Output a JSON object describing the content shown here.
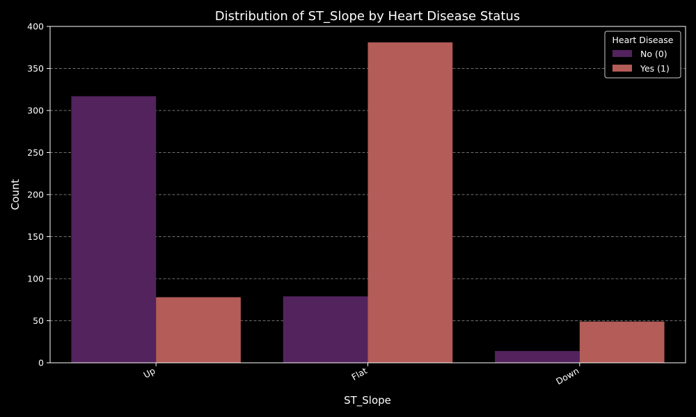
{
  "chart_data": {
    "type": "bar",
    "title": "Distribution of ST_Slope by Heart Disease Status",
    "xlabel": "ST_Slope",
    "ylabel": "Count",
    "categories": [
      "Up",
      "Flat",
      "Down"
    ],
    "series": [
      {
        "name": "No (0)",
        "values": [
          317,
          79,
          14
        ],
        "color": "#53235e"
      },
      {
        "name": "Yes (1)",
        "values": [
          78,
          381,
          49
        ],
        "color": "#b35c58"
      }
    ],
    "ylim": [
      0,
      400
    ],
    "yticks": [
      "0",
      "50",
      "100",
      "150",
      "200",
      "250",
      "300",
      "350",
      "400"
    ],
    "grid": "y-dashed",
    "legend": {
      "title": "Heart Disease",
      "placement": "top-right"
    },
    "background": "#000000",
    "foreground": "#ffffff"
  }
}
